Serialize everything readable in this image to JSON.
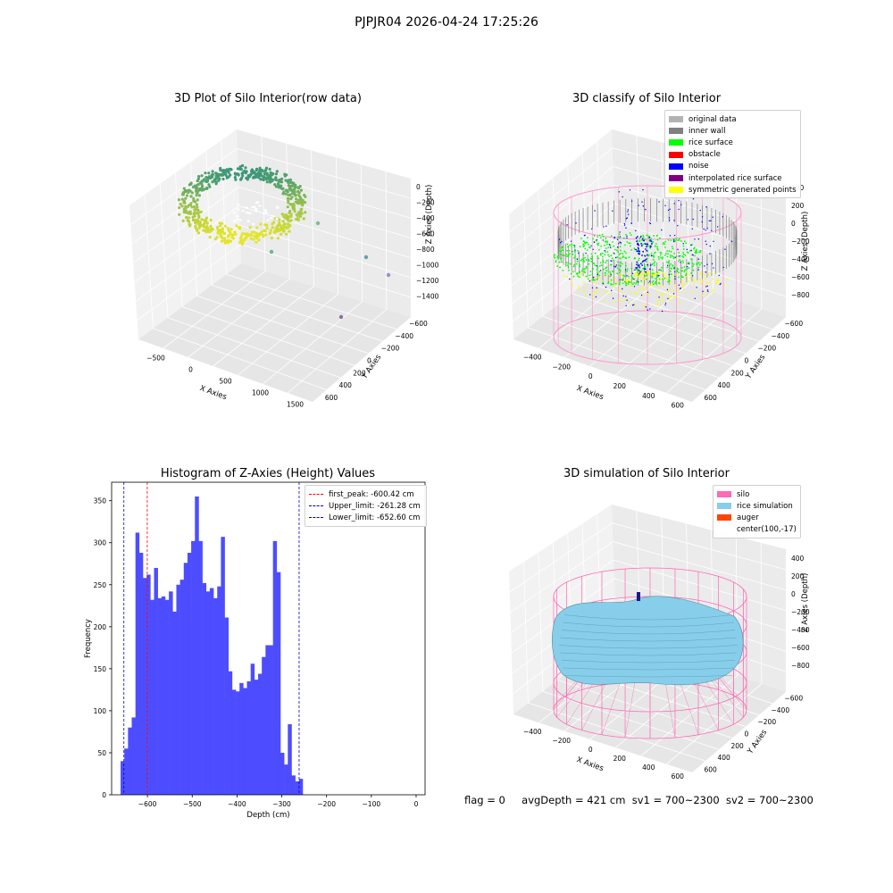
{
  "suptitle": "PJPJR04 2026-04-24 17:25:26",
  "chart_data": [
    {
      "type": "scatter",
      "title": "3D Plot of Silo Interior(row data)",
      "xlabel": "X Axies",
      "ylabel": "Y Axies",
      "zlabel": "Z Axies (Depth)",
      "x_ticks": [
        "−500",
        "0",
        "500",
        "1000",
        "1500"
      ],
      "y_ticks": [
        "600",
        "400",
        "200",
        "0",
        "−200",
        "−400",
        "−600"
      ],
      "z_ticks": [
        "0",
        "−200",
        "−400",
        "−600",
        "−800",
        "−1000",
        "−1200",
        "−1400"
      ],
      "xlim": [
        -700,
        1700
      ],
      "ylim": [
        -700,
        700
      ],
      "zlim": [
        -1500,
        50
      ],
      "description_points": "dense ring of points (rice surface) plus scattered outliers",
      "outliers": [
        {
          "x": 1100,
          "y": 300,
          "z": -300
        },
        {
          "x": 1400,
          "y": -100,
          "z": -1100
        },
        {
          "x": 1600,
          "y": -200,
          "z": -1250
        },
        {
          "x": 900,
          "y": -600,
          "z": -1300
        },
        {
          "x": 600,
          "y": 500,
          "z": -900
        }
      ]
    },
    {
      "type": "scatter",
      "title": "3D classify of Silo Interior",
      "xlabel": "X Axies",
      "ylabel": "Y Axies",
      "zlabel": "Z Axies (Depth)",
      "x_ticks": [
        "−400",
        "−200",
        "0",
        "200",
        "400",
        "600"
      ],
      "y_ticks": [
        "600",
        "400",
        "200",
        "0",
        "−200",
        "−400",
        "−600"
      ],
      "z_ticks": [
        "400",
        "200",
        "0",
        "−200",
        "−400",
        "−600",
        "−800"
      ],
      "legend": [
        {
          "label": "original data",
          "color": "#b3b3b3"
        },
        {
          "label": "inner wall",
          "color": "#808080"
        },
        {
          "label": "rice surface",
          "color": "#00ff00"
        },
        {
          "label": "obstacle",
          "color": "#ff0000"
        },
        {
          "label": "noise",
          "color": "#0000ff"
        },
        {
          "label": "interpolated rice surface",
          "color": "#800080"
        },
        {
          "label": "symmetric generated points",
          "color": "#ffff00"
        }
      ],
      "series_colors": {
        "wall_lines": "#ff99cc",
        "inner_wall": "#808080",
        "rice": "#00ff00",
        "noise": "#0000ff",
        "symmetric": "#ffff00"
      }
    },
    {
      "type": "bar",
      "title": "Histogram of Z-Axies (Height) Values",
      "xlabel": "Depth (cm)",
      "ylabel": "Frequency",
      "xlim": [
        -680,
        20
      ],
      "ylim": [
        0,
        372
      ],
      "x_ticks": [
        -600,
        -500,
        -400,
        -300,
        -200,
        -100,
        0
      ],
      "x_tick_labels": [
        "−600",
        "−500",
        "−400",
        "−300",
        "−200",
        "−100",
        "0"
      ],
      "y_ticks": [
        0,
        50,
        100,
        150,
        200,
        250,
        300,
        350
      ],
      "bar_color": "#4d4dff",
      "bin_start": -660,
      "bin_width": 8.3,
      "values": [
        40,
        55,
        80,
        92,
        312,
        288,
        258,
        262,
        232,
        270,
        234,
        236,
        232,
        242,
        218,
        250,
        256,
        276,
        288,
        302,
        355,
        302,
        252,
        242,
        246,
        234,
        248,
        307,
        211,
        147,
        125,
        123,
        133,
        127,
        135,
        156,
        137,
        144,
        164,
        178,
        178,
        302,
        265,
        50,
        36,
        84,
        23,
        16,
        19
      ],
      "vlines": [
        {
          "label": "first_peak: -600.42 cm",
          "x": -600.42,
          "color": "#ff0000"
        },
        {
          "label": "Upper_limit: -261.28 cm",
          "x": -261.28,
          "color": "#0000cc"
        },
        {
          "label": "Lower_limit: -652.60 cm",
          "x": -652.6,
          "color": "#0000cc"
        }
      ]
    },
    {
      "type": "surface",
      "title": "3D simulation of Silo Interior",
      "xlabel": "X Axies",
      "ylabel": "Y Axies",
      "zlabel": "Z Axies (Depth)",
      "x_ticks": [
        "−400",
        "−200",
        "0",
        "200",
        "400",
        "600"
      ],
      "y_ticks": [
        "600",
        "400",
        "200",
        "0",
        "−200",
        "−400",
        "−600"
      ],
      "z_ticks": [
        "400",
        "200",
        "0",
        "−200",
        "−400",
        "−600",
        "−800"
      ],
      "legend": [
        {
          "label": "silo",
          "color": "#ff69b4"
        },
        {
          "label": "rice simulation",
          "color": "#87ceeb"
        },
        {
          "label": "auger",
          "color": "#ff4500"
        },
        {
          "label": "center(100,-17)",
          "color": ""
        }
      ]
    }
  ],
  "status": {
    "flag": "flag = 0",
    "avg_depth": "avgDepth = 421 cm",
    "sv1": "sv1 = 700~2300",
    "sv2": "sv2 = 700~2300"
  }
}
